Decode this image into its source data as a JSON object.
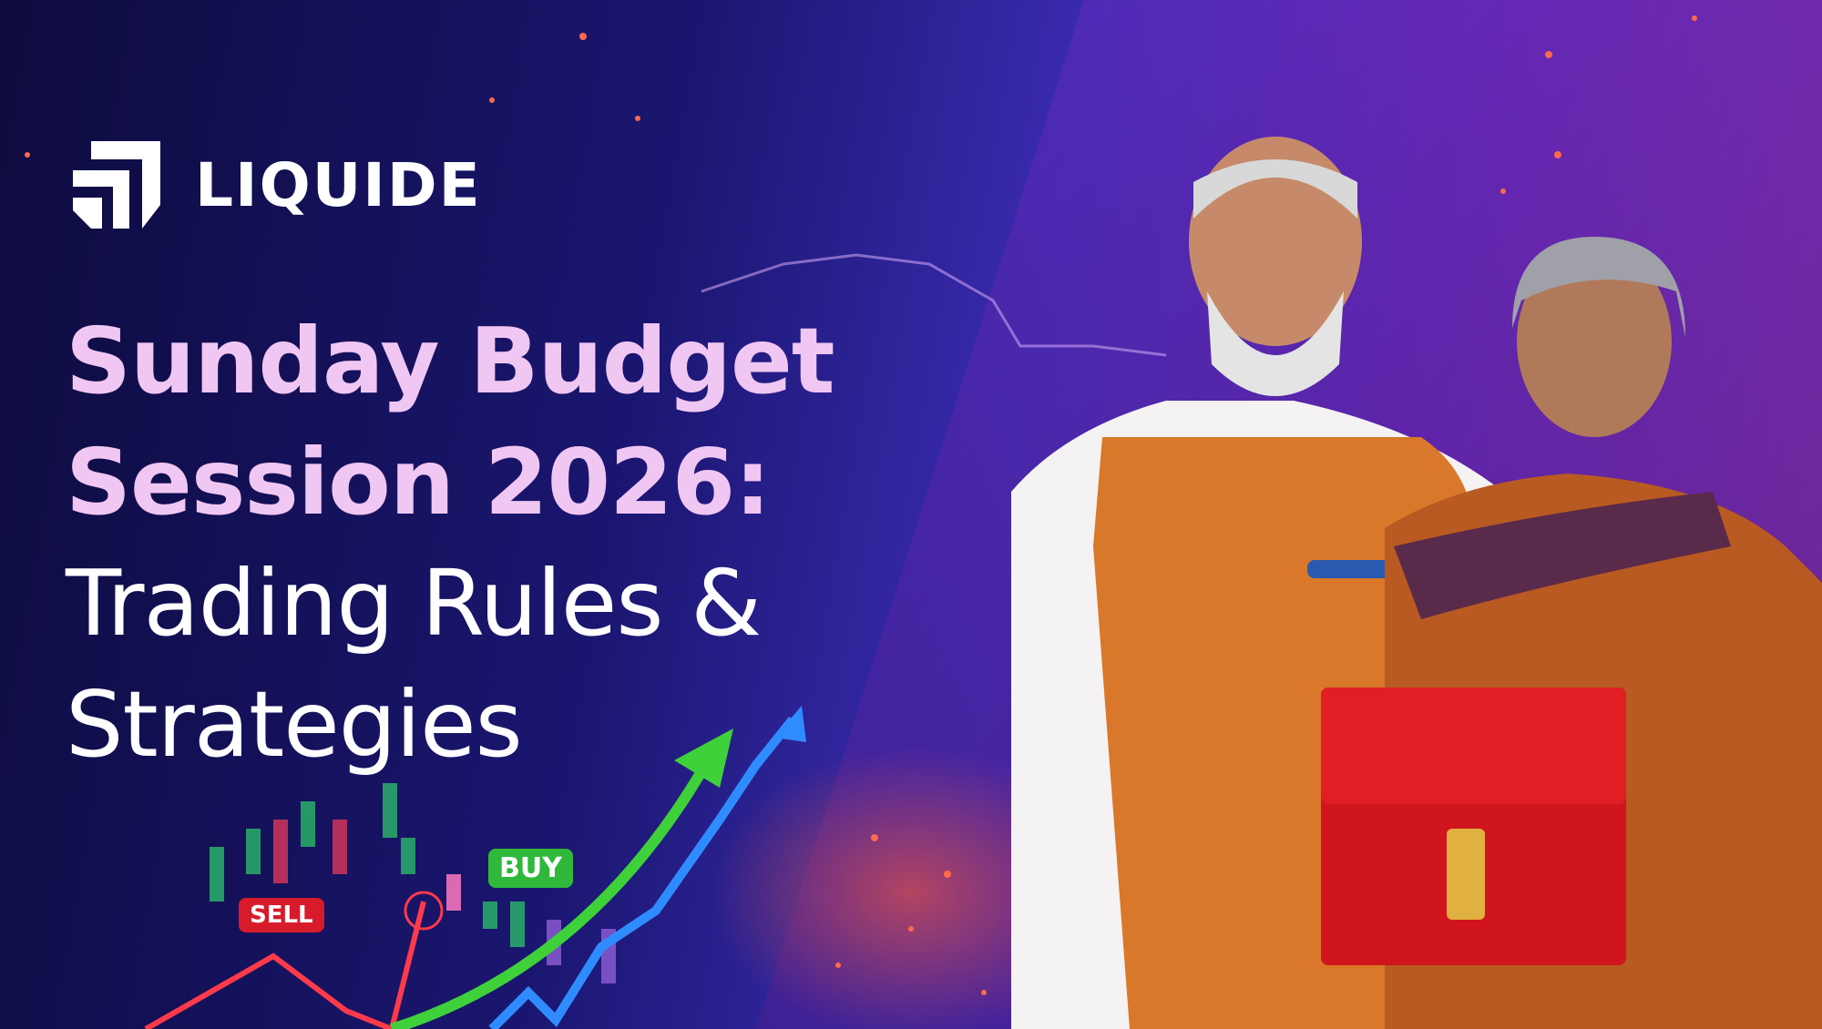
{
  "brand": {
    "name": "LIQUIDE",
    "logo_icon": "liquide-logo-icon"
  },
  "headline": {
    "line1": "Sunday Budget",
    "line2": "Session 2026:",
    "line3": "Trading Rules &",
    "line4": "Strategies"
  },
  "chart_labels": {
    "sell": "SELL",
    "buy": "BUY"
  },
  "colors": {
    "headline_pink": "#f0c6f2",
    "headline_white": "#ffffff",
    "sell_red": "#d81b2a",
    "buy_green": "#2fb83a",
    "arrow_green": "#3fd13a",
    "arrow_blue": "#2f8cff",
    "briefcase_red": "#d0161c",
    "vest_orange": "#d9782a"
  }
}
